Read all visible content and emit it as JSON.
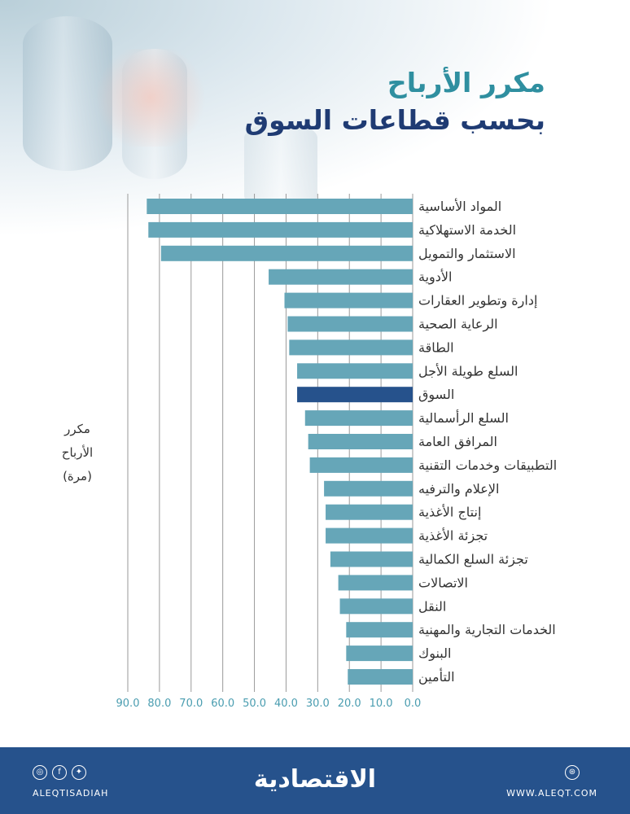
{
  "title": "مكرر الأرباح",
  "subtitle": "بحسب قطاعات السوق",
  "y_axis_label": [
    "مكرر",
    "الأرباح",
    "(مرة)"
  ],
  "chart_data": {
    "type": "bar",
    "orientation": "horizontal",
    "direction": "right-to-left",
    "categories": [
      "المواد الأساسية",
      "الخدمة الاستهلاكية",
      "الاستثمار والتمويل",
      "الأدوية",
      "إدارة وتطوير العقارات",
      "الرعاية الصحية",
      "الطاقة",
      "السلع طويلة الأجل",
      "السوق",
      "السلع الرأسمالية",
      "المرافق العامة",
      "التطبيقات وخدمات التقنية",
      "الإعلام والترفيه",
      "إنتاج الأغذية",
      "تجزئة الأغذية",
      "تجزئة السلع الكمالية",
      "الاتصالات",
      "النقل",
      "الخدمات التجارية والمهنية",
      "البنوك",
      "التأمين"
    ],
    "values": [
      84.0,
      83.5,
      79.5,
      45.5,
      40.5,
      39.5,
      39.0,
      36.5,
      36.5,
      34.0,
      33.0,
      32.5,
      28.0,
      27.5,
      27.5,
      26.0,
      23.5,
      23.0,
      21.0,
      21.0,
      20.5
    ],
    "highlight": "السوق",
    "xlim": [
      0,
      90
    ],
    "ticks": [
      "0.0",
      "10.0",
      "20.0",
      "30.0",
      "40.0",
      "50.0",
      "60.0",
      "70.0",
      "80.0",
      "90.0"
    ],
    "grid": true,
    "colors": {
      "bar": "#66a6b8",
      "highlight": "#26528c",
      "grid": "#9a9a9a",
      "tick": "#4a9db0",
      "label": "#333333"
    }
  },
  "footer": {
    "brand": "الاقتصادية",
    "handle": "ALEQTISADIAH",
    "website": "WWW.ALEQT.COM",
    "social_icons": [
      "instagram-icon",
      "facebook-icon",
      "twitter-icon"
    ],
    "web_icon": "dribbble-icon"
  }
}
